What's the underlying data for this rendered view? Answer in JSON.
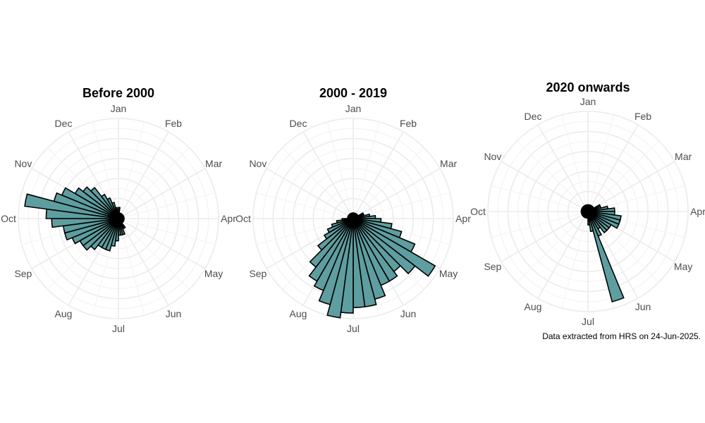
{
  "chart_data": [
    {
      "type": "bar",
      "subtype": "polar",
      "title": "Before 2000",
      "months": [
        "Jan",
        "Feb",
        "Mar",
        "Apr",
        "May",
        "Jun",
        "Jul",
        "Aug",
        "Sep",
        "Oct",
        "Nov",
        "Dec"
      ],
      "bin_days": 15,
      "values": [
        1,
        0.5,
        0.5,
        0.5,
        0.5,
        0.5,
        0.5,
        0.5,
        0.5,
        0.5,
        0.5,
        0.5,
        0.5,
        0.5,
        0.5,
        0.5,
        0.5,
        0.5,
        0.5,
        1,
        1,
        1.5,
        1.5,
        1.5,
        2,
        2.5,
        3,
        3,
        3,
        3.5,
        4,
        4,
        4.5,
        5,
        5,
        6,
        6.5,
        8.5,
        6,
        5.5,
        4.5,
        4,
        3.5,
        2.5,
        2,
        1.5,
        1,
        0.5
      ],
      "rmax": 9,
      "grid": true,
      "fill": "#5e9ea0"
    },
    {
      "type": "bar",
      "subtype": "polar",
      "title": "2000 - 2019",
      "months": [
        "Jan",
        "Feb",
        "Mar",
        "Apr",
        "May",
        "Jun",
        "Jul",
        "Aug",
        "Sep",
        "Oct",
        "Nov",
        "Dec"
      ],
      "bin_days": 15,
      "values": [
        0.5,
        0.5,
        0.5,
        0.5,
        0.5,
        0.5,
        0.5,
        0.5,
        1,
        1,
        1.5,
        2,
        2.5,
        3.5,
        4.5,
        6,
        8.5,
        7,
        6,
        6.5,
        6.5,
        7.5,
        8,
        8,
        8.5,
        9,
        8,
        7,
        6.5,
        5.5,
        4,
        3,
        2.5,
        2,
        1.5,
        1,
        0.5,
        0.5,
        0.5,
        0.5,
        0.5,
        0.5,
        0.5,
        0.5,
        0.5,
        0.5,
        0.5,
        0.5
      ],
      "rmax": 9,
      "grid": true,
      "fill": "#5e9ea0"
    },
    {
      "type": "bar",
      "subtype": "polar",
      "title": "2020 onwards",
      "months": [
        "Jan",
        "Feb",
        "Mar",
        "Apr",
        "May",
        "Jun",
        "Jul",
        "Aug",
        "Sep",
        "Oct",
        "Nov",
        "Dec"
      ],
      "bin_days": 15,
      "values": [
        0.5,
        0.5,
        0.5,
        0.5,
        0.5,
        0.5,
        0.5,
        0.5,
        1,
        1,
        1.5,
        2,
        2,
        2.5,
        2.5,
        2.5,
        2,
        2,
        2,
        1.5,
        2,
        7,
        1.5,
        1,
        0.5,
        0.5,
        0.5,
        0.5,
        0.5,
        0.5,
        0.5,
        0.5,
        0.5,
        0.5,
        0.5,
        0.5,
        0.5,
        0.5,
        0.5,
        0.5,
        0.5,
        0.5,
        0.5,
        0.5,
        0.5,
        0.5,
        0.5,
        0.5
      ],
      "rmax": 7.5,
      "grid": true,
      "fill": "#5e9ea0"
    }
  ],
  "caption": "Data extracted from HRS on 24-Jun-2025."
}
